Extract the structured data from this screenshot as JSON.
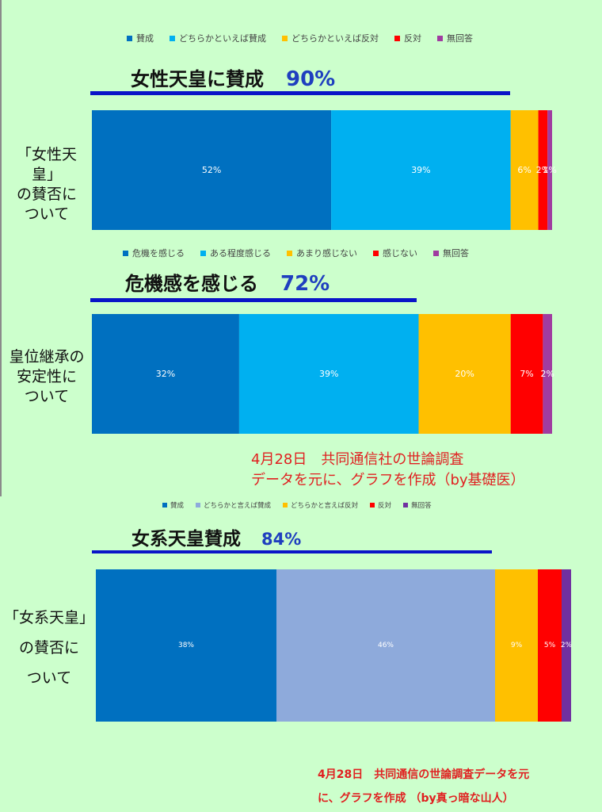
{
  "charts": [
    {
      "legend": [
        "賛成",
        "どちらかといえば賛成",
        "どちらかといえば反対",
        "反対",
        "無回答"
      ],
      "colors": [
        "#0070c0",
        "#00b0f0",
        "#ffc000",
        "#ff0000",
        "#a03ca0"
      ],
      "headline": "女性天皇に賛成",
      "headline_pct": "90%",
      "side_label": "「女性天皇」\nの賛否に\nついて",
      "labels": [
        "52%",
        "39%",
        "6%",
        "2%",
        "1%"
      ]
    },
    {
      "legend": [
        "危機を感じる",
        "ある程度感じる",
        "あまり感じない",
        "感じない",
        "無回答"
      ],
      "colors": [
        "#0070c0",
        "#00b0f0",
        "#ffc000",
        "#ff0000",
        "#a03ca0"
      ],
      "headline": "危機感を感じる",
      "headline_pct": "72%",
      "side_label": "皇位継承の\n安定性に\nついて",
      "labels": [
        "32%",
        "39%",
        "20%",
        "7%",
        "2%"
      ]
    },
    {
      "legend": [
        "賛成",
        "どちらかと言えば賛成",
        "どちらかと言えば反対",
        "反対",
        "無回答"
      ],
      "colors": [
        "#0070c0",
        "#8eaadb",
        "#ffc000",
        "#ff0000",
        "#7030a0"
      ],
      "headline": "女系天皇賛成",
      "headline_pct": "84%",
      "side_label": "「女系天皇」\nの賛否に\nついて",
      "labels": [
        "38%",
        "46%",
        "9%",
        "5%",
        "2%"
      ]
    }
  ],
  "note1": {
    "line1": "4月28日　共同通信社の世論調査",
    "line2": "データを元に、グラフを作成（by基礎医）"
  },
  "note2": {
    "line1": "4月28日　共同通信の世論調査データを元",
    "line2": "に、グラフを作成 （by真っ暗な山人）"
  },
  "chart_data": [
    {
      "type": "bar",
      "stacked": true,
      "orientation": "horizontal",
      "categories": [
        "「女性天皇」の賛否について"
      ],
      "series": [
        {
          "name": "賛成",
          "values": [
            52
          ]
        },
        {
          "name": "どちらかといえば賛成",
          "values": [
            39
          ]
        },
        {
          "name": "どちらかといえば反対",
          "values": [
            6
          ]
        },
        {
          "name": "反対",
          "values": [
            2
          ]
        },
        {
          "name": "無回答",
          "values": [
            1
          ]
        }
      ],
      "title": "女性天皇に賛成 90%",
      "legend": "top",
      "grid": false
    },
    {
      "type": "bar",
      "stacked": true,
      "orientation": "horizontal",
      "categories": [
        "皇位継承の安定性について"
      ],
      "series": [
        {
          "name": "危機を感じる",
          "values": [
            32
          ]
        },
        {
          "name": "ある程度感じる",
          "values": [
            39
          ]
        },
        {
          "name": "あまり感じない",
          "values": [
            20
          ]
        },
        {
          "name": "感じない",
          "values": [
            7
          ]
        },
        {
          "name": "無回答",
          "values": [
            2
          ]
        }
      ],
      "title": "危機感を感じる 72%",
      "legend": "top",
      "grid": false
    },
    {
      "type": "bar",
      "stacked": true,
      "orientation": "horizontal",
      "categories": [
        "「女系天皇」の賛否について"
      ],
      "series": [
        {
          "name": "賛成",
          "values": [
            38
          ]
        },
        {
          "name": "どちらかと言えば賛成",
          "values": [
            46
          ]
        },
        {
          "name": "どちらかと言えば反対",
          "values": [
            9
          ]
        },
        {
          "name": "反対",
          "values": [
            5
          ]
        },
        {
          "name": "無回答",
          "values": [
            2
          ]
        }
      ],
      "title": "女系天皇賛成 84%",
      "legend": "top",
      "grid": false
    }
  ]
}
